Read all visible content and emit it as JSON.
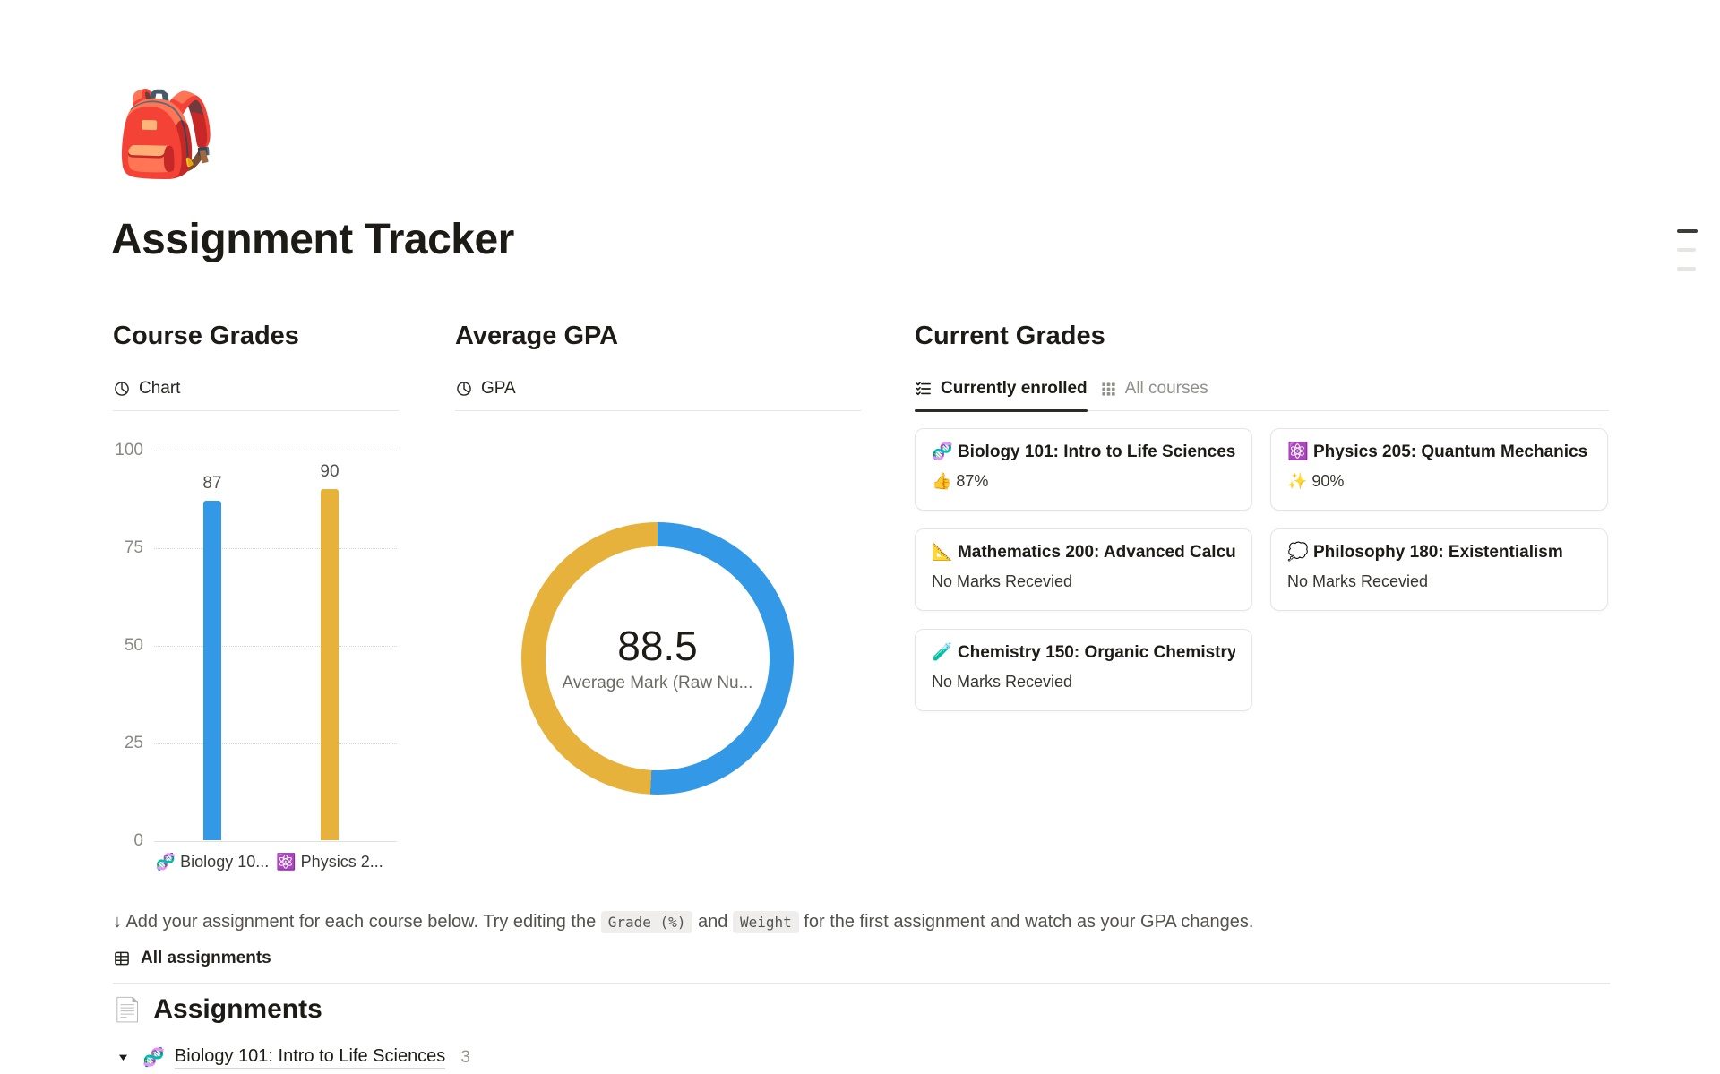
{
  "page": {
    "icon": "🎒",
    "title": "Assignment Tracker"
  },
  "course_grades": {
    "heading": "Course Grades",
    "tab_label": "Chart"
  },
  "average_gpa": {
    "heading": "Average GPA",
    "tab_label": "GPA"
  },
  "current_grades": {
    "heading": "Current Grades",
    "tabs": [
      {
        "label": "Currently enrolled",
        "active": true
      },
      {
        "label": "All courses",
        "active": false
      }
    ],
    "cards": [
      {
        "icon": "🧬",
        "title": "Biology 101: Intro to Life Sciences",
        "status": "👍 87%"
      },
      {
        "icon": "⚛️",
        "title": "Physics 205: Quantum Mechanics",
        "status": "✨ 90%"
      },
      {
        "icon": "📐",
        "title": "Mathematics 200: Advanced Calculus",
        "status": "No Marks Recevied"
      },
      {
        "icon": "💭",
        "title": "Philosophy 180: Existentialism",
        "status": "No Marks Recevied"
      },
      {
        "icon": "🧪",
        "title": "Chemistry 150: Organic Chemistry",
        "status": "No Marks Recevied"
      }
    ]
  },
  "note": {
    "prefix": "↓ Add your assignment for each course below. Try editing the ",
    "code1": "Grade (%)",
    "middle": " and ",
    "code2": "Weight",
    "suffix": " for the first assignment and watch as your GPA changes."
  },
  "assignments": {
    "view_tab": "All assignments",
    "heading_icon": "📄",
    "heading": "Assignments",
    "group": {
      "icon": "🧬",
      "title": "Biology 101: Intro to Life Sciences",
      "count": "3"
    }
  },
  "icons": {
    "pie-chart": "◔",
    "checklist": "☑",
    "grid": "▦",
    "table": "⊞",
    "toggle": "▼",
    "toc": "≡",
    "down-arrow": "↓"
  },
  "chart_data": [
    {
      "type": "bar",
      "title": "Course Grades — Chart",
      "categories": [
        "🧬 Biology 10...",
        "⚛️ Physics 2..."
      ],
      "values": [
        87,
        90
      ],
      "bar_colors": [
        "#3399E6",
        "#E6B23C"
      ],
      "data_labels": [
        "87",
        "90"
      ],
      "xlabel": "",
      "ylabel": "",
      "ylim": [
        0,
        100
      ],
      "yticks": [
        0,
        25,
        50,
        75,
        100
      ],
      "grid": "horizontal-dotted",
      "legend": "none"
    },
    {
      "type": "donut",
      "title": "Average GPA — GPA",
      "center_value": "88.5",
      "center_label": "Average Mark (Raw Nu...",
      "segments": [
        {
          "value": 90,
          "color": "#3399E6"
        },
        {
          "value": 87,
          "color": "#E6B23C"
        }
      ],
      "start_angle": "top",
      "direction": "clockwise",
      "ring_thickness_px": 27
    }
  ]
}
